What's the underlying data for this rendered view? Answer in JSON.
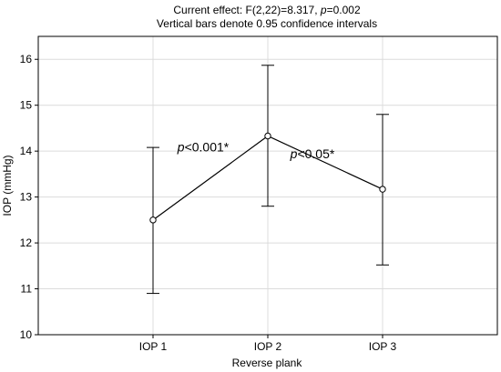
{
  "chart_data": {
    "type": "line",
    "title_line1_prefix": "Current effect: F(2,22)=8.317, ",
    "title_line1_p": "p",
    "title_line1_suffix": "=0.002",
    "title_line2": "Vertical bars denote 0.95 confidence intervals",
    "xlabel": "Reverse plank",
    "ylabel": "IOP (mmHg)",
    "categories": [
      "IOP 1",
      "IOP 2",
      "IOP 3"
    ],
    "series": [
      {
        "values": [
          12.5,
          14.33,
          13.17
        ],
        "ci_lower": [
          10.9,
          12.8,
          11.52
        ],
        "ci_upper": [
          14.08,
          15.87,
          14.8
        ]
      }
    ],
    "ylim": [
      10,
      16.5
    ],
    "yticks": [
      "10",
      "11",
      "12",
      "13",
      "14",
      "15",
      "16"
    ],
    "grid": true,
    "annotations": [
      {
        "p": "p",
        "text": "<0.001*",
        "between": [
          "IOP 1",
          "IOP 2"
        ]
      },
      {
        "p": "p",
        "text": "<0.05*",
        "between": [
          "IOP 2",
          "IOP 3"
        ]
      }
    ]
  }
}
